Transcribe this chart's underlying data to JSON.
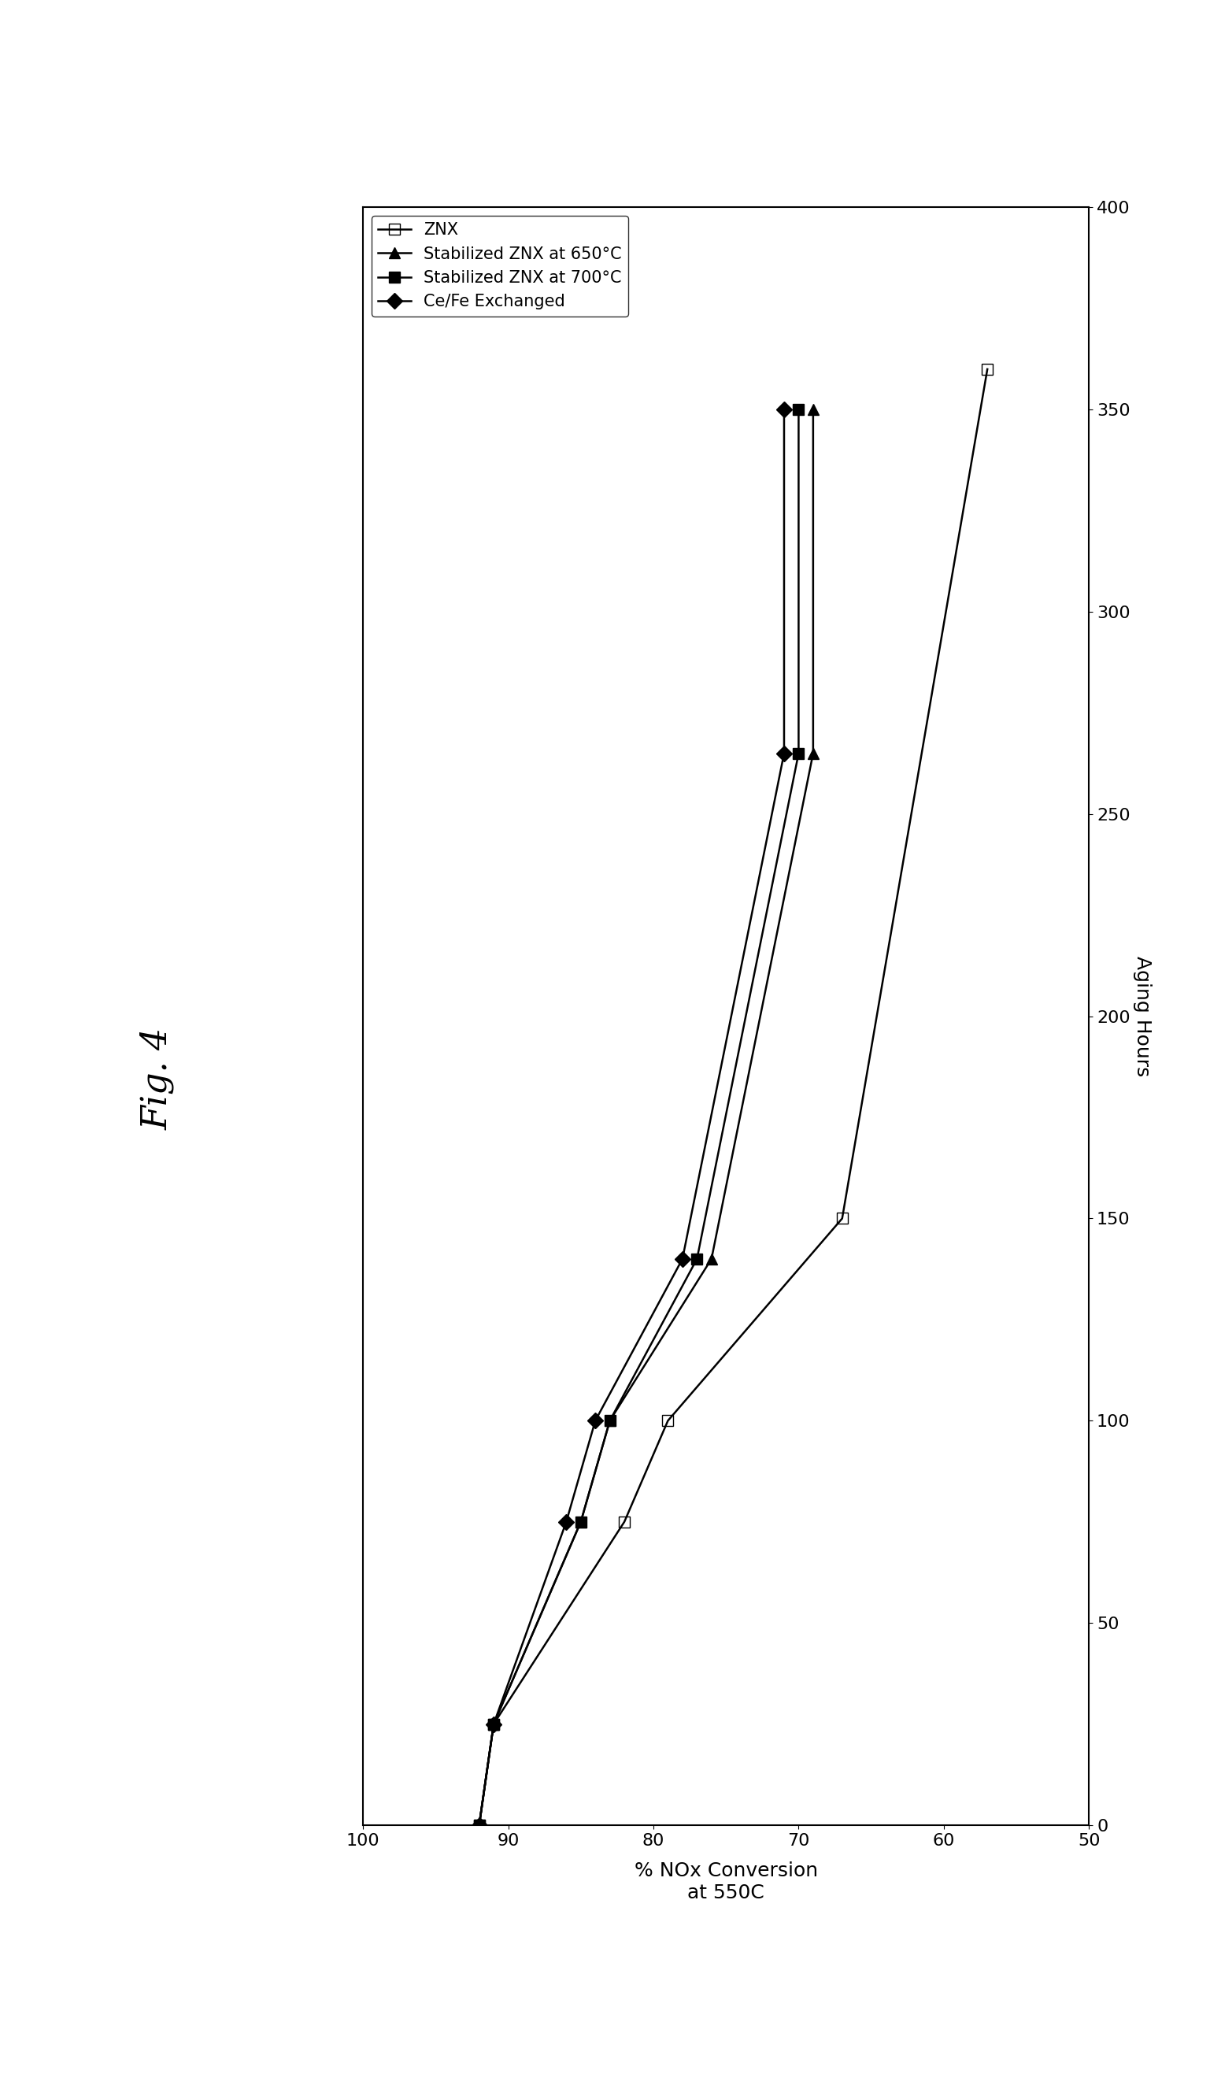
{
  "title": "Fig. 4",
  "aging_label": "Aging Hours",
  "nox_label": "% NOx Conversion\nat 550C",
  "nox_xlim": [
    100,
    50
  ],
  "aging_ylim": [
    0,
    400
  ],
  "nox_xticks": [
    50,
    60,
    70,
    80,
    90,
    100
  ],
  "aging_yticks": [
    0,
    50,
    100,
    150,
    200,
    250,
    300,
    350,
    400
  ],
  "series": [
    {
      "label": "ZNX",
      "marker": "s",
      "fillstyle": "none",
      "nox": [
        92,
        91,
        82,
        79,
        67,
        57
      ],
      "aging": [
        0,
        25,
        75,
        100,
        150,
        360
      ]
    },
    {
      "label": "Stabilized ZNX at 650°C",
      "marker": "^",
      "fillstyle": "full",
      "nox": [
        92,
        91,
        85,
        83,
        76,
        69,
        69
      ],
      "aging": [
        0,
        25,
        75,
        100,
        140,
        265,
        350
      ]
    },
    {
      "label": "Stabilized ZNX at 700°C",
      "marker": "s",
      "fillstyle": "full",
      "nox": [
        92,
        91,
        85,
        83,
        77,
        70,
        70
      ],
      "aging": [
        0,
        25,
        75,
        100,
        140,
        265,
        350
      ]
    },
    {
      "label": "Ce/Fe Exchanged",
      "marker": "D",
      "fillstyle": "full",
      "nox": [
        92,
        91,
        86,
        84,
        78,
        71,
        71
      ],
      "aging": [
        0,
        25,
        75,
        100,
        140,
        265,
        350
      ]
    }
  ],
  "bg": "#ffffff",
  "title_fs": 32,
  "label_fs": 18,
  "tick_fs": 16,
  "legend_fs": 15,
  "markersize": 10,
  "linewidth": 1.8
}
